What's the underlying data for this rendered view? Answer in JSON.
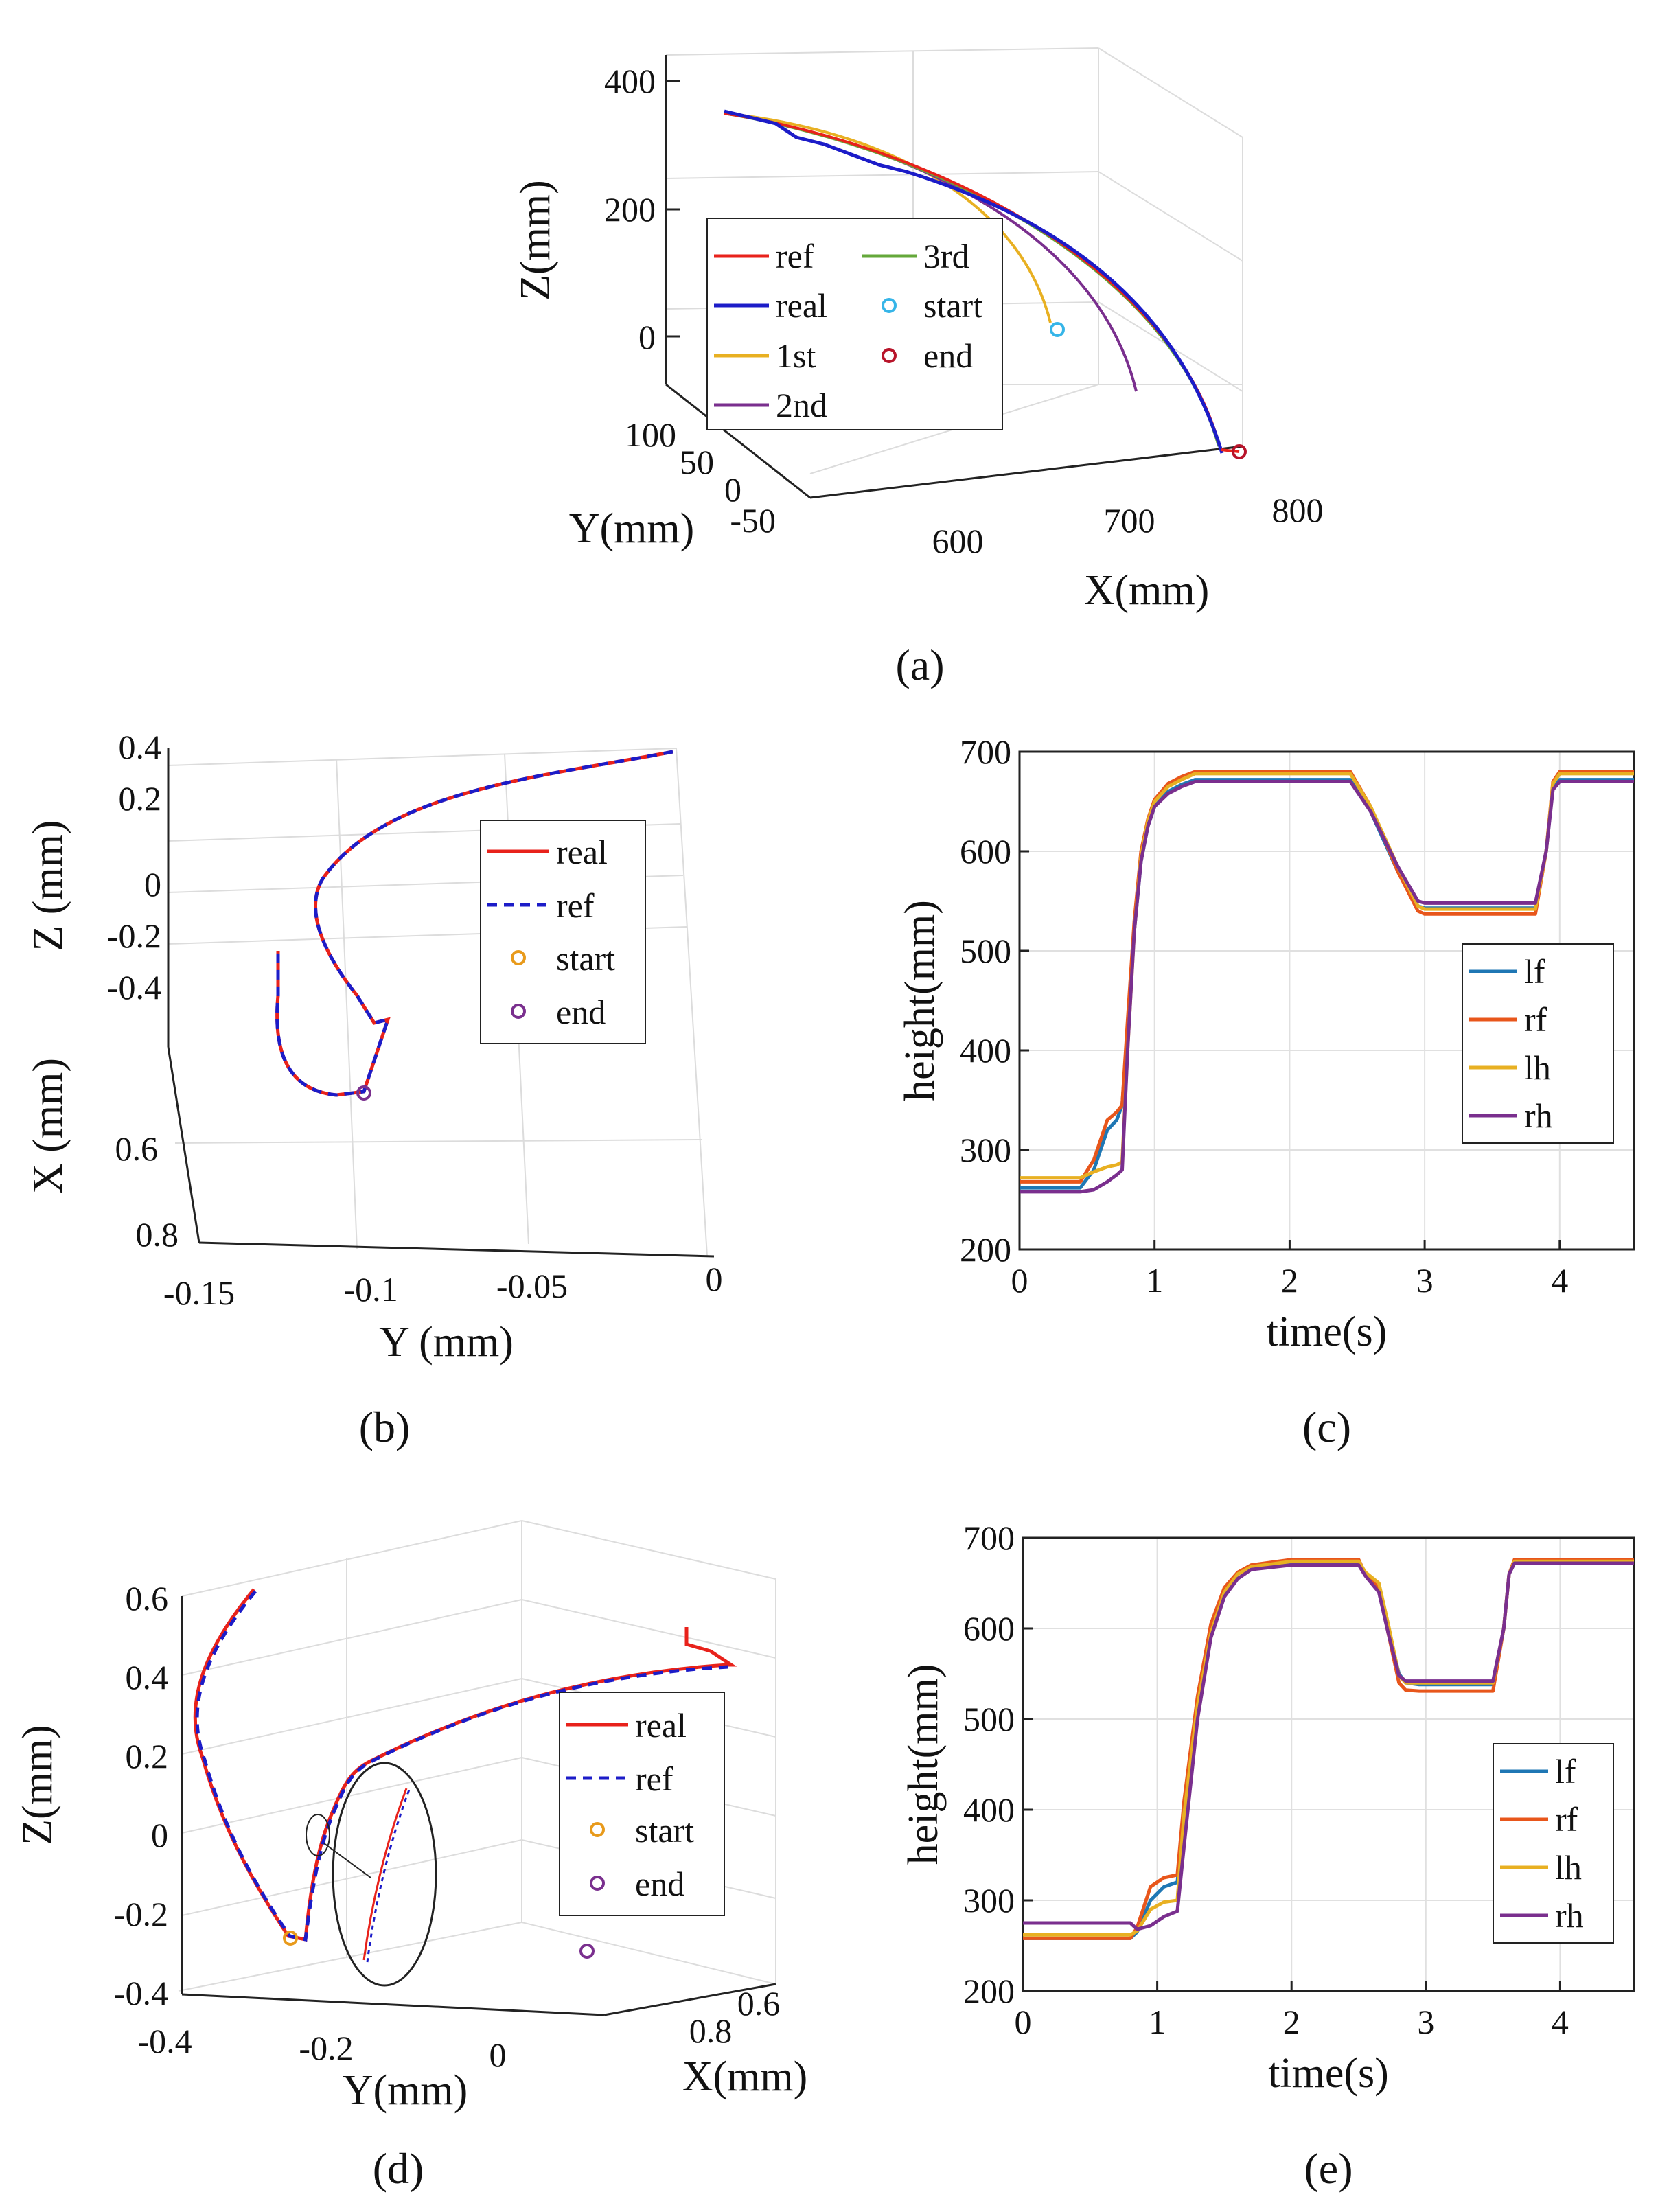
{
  "panels": {
    "a": {
      "caption": "(a)",
      "zlabel": "Z(mm)",
      "ylabel": "Y(mm)",
      "xlabel": "X(mm)",
      "zticks": [
        "400",
        "200",
        "0"
      ],
      "yticks": [
        "100",
        "50",
        "0",
        "-50"
      ],
      "xticks": [
        "600",
        "700",
        "800"
      ],
      "legend": [
        {
          "label": "ref",
          "color": "#e8221b",
          "kind": "line"
        },
        {
          "label": "real",
          "color": "#1c1cc8",
          "kind": "line"
        },
        {
          "label": "1st",
          "color": "#e8b022",
          "kind": "line"
        },
        {
          "label": "2nd",
          "color": "#7a2f8e",
          "kind": "line"
        },
        {
          "label": "3rd",
          "color": "#64a83a",
          "kind": "line"
        },
        {
          "label": "start",
          "color": "#36b5e8",
          "kind": "marker"
        },
        {
          "label": "end",
          "color": "#b8142a",
          "kind": "marker"
        }
      ]
    },
    "b": {
      "caption": "(b)",
      "zlabel": "Z (mm)",
      "xlabel": "X (mm)",
      "ylabel": "Y (mm)",
      "zticks": [
        "0.4",
        "0.2",
        "0",
        "-0.2",
        "-0.4"
      ],
      "xticks": [
        "0.6",
        "0.8"
      ],
      "yticks": [
        "-0.15",
        "-0.1",
        "-0.05",
        "0"
      ],
      "legend": [
        {
          "label": "real",
          "color": "#e8221b",
          "kind": "line"
        },
        {
          "label": "ref",
          "color": "#1c1cc8",
          "kind": "dash"
        },
        {
          "label": "start",
          "color": "#e89a1b",
          "kind": "marker"
        },
        {
          "label": "end",
          "color": "#7a2f8e",
          "kind": "marker"
        }
      ]
    },
    "d": {
      "caption": "(d)",
      "zlabel": "Z(mm)",
      "ylabel": "Y(mm)",
      "xlabel": "X(mm)",
      "zticks": [
        "0.6",
        "0.4",
        "0.2",
        "0",
        "-0.2",
        "-0.4"
      ],
      "yticks": [
        "-0.4",
        "-0.2",
        "0"
      ],
      "xticks": [
        "0.8",
        "0.6"
      ],
      "legend": [
        {
          "label": "real",
          "color": "#e8221b",
          "kind": "line"
        },
        {
          "label": "ref",
          "color": "#1c1cc8",
          "kind": "dash"
        },
        {
          "label": "start",
          "color": "#e89a1b",
          "kind": "marker"
        },
        {
          "label": "end",
          "color": "#7a2f8e",
          "kind": "marker"
        }
      ]
    }
  },
  "chart_data": [
    {
      "id": "c",
      "type": "line",
      "caption": "(c)",
      "xlabel": "time(s)",
      "ylabel": "height(mm)",
      "xlim": [
        0,
        4.55
      ],
      "ylim": [
        200,
        700
      ],
      "xticks": [
        0,
        1,
        2,
        3,
        4
      ],
      "yticks": [
        200,
        300,
        400,
        500,
        600,
        700
      ],
      "grid": true,
      "legend_position": "right",
      "series": [
        {
          "name": "lf",
          "color": "#1f77b4",
          "x": [
            0,
            0.45,
            0.55,
            0.65,
            0.72,
            0.76,
            0.8,
            0.85,
            0.9,
            0.95,
            1.0,
            1.1,
            1.2,
            1.3,
            1.5,
            2.0,
            2.45,
            2.6,
            2.8,
            2.95,
            3.0,
            3.2,
            3.5,
            3.82,
            3.9,
            3.95,
            4.0,
            4.55
          ],
          "y": [
            262,
            262,
            280,
            320,
            330,
            345,
            420,
            520,
            590,
            625,
            645,
            660,
            667,
            672,
            672,
            672,
            672,
            640,
            580,
            545,
            543,
            543,
            543,
            543,
            600,
            665,
            672,
            672
          ]
        },
        {
          "name": "rf",
          "color": "#e8561b",
          "x": [
            0,
            0.45,
            0.55,
            0.65,
            0.72,
            0.76,
            0.8,
            0.85,
            0.9,
            0.95,
            1.0,
            1.1,
            1.2,
            1.3,
            1.5,
            2.0,
            2.45,
            2.6,
            2.8,
            2.95,
            3.0,
            3.2,
            3.5,
            3.82,
            3.9,
            3.95,
            4.0,
            4.55
          ],
          "y": [
            268,
            268,
            290,
            330,
            338,
            345,
            430,
            530,
            600,
            632,
            652,
            668,
            675,
            680,
            680,
            680,
            680,
            645,
            580,
            540,
            537,
            537,
            537,
            537,
            600,
            670,
            680,
            680
          ]
        },
        {
          "name": "lh",
          "color": "#e8b022",
          "x": [
            0,
            0.45,
            0.55,
            0.65,
            0.72,
            0.76,
            0.8,
            0.85,
            0.9,
            0.95,
            1.0,
            1.1,
            1.2,
            1.3,
            1.5,
            2.0,
            2.45,
            2.6,
            2.8,
            2.95,
            3.0,
            3.2,
            3.5,
            3.82,
            3.9,
            3.95,
            4.0,
            4.55
          ],
          "y": [
            272,
            272,
            278,
            283,
            285,
            288,
            400,
            520,
            595,
            630,
            650,
            665,
            672,
            678,
            678,
            678,
            678,
            645,
            585,
            545,
            542,
            542,
            542,
            542,
            600,
            668,
            678,
            678
          ]
        },
        {
          "name": "rh",
          "color": "#7a2f8e",
          "x": [
            0,
            0.45,
            0.55,
            0.65,
            0.72,
            0.76,
            0.8,
            0.85,
            0.9,
            0.95,
            1.0,
            1.1,
            1.2,
            1.3,
            1.5,
            2.0,
            2.45,
            2.6,
            2.8,
            2.95,
            3.0,
            3.2,
            3.5,
            3.82,
            3.9,
            3.95,
            4.0,
            4.55
          ],
          "y": [
            258,
            258,
            260,
            268,
            275,
            280,
            400,
            520,
            590,
            625,
            645,
            658,
            665,
            670,
            670,
            670,
            670,
            640,
            585,
            550,
            548,
            548,
            548,
            548,
            600,
            662,
            670,
            670
          ]
        }
      ]
    },
    {
      "id": "e",
      "type": "line",
      "caption": "(e)",
      "xlabel": "time(s)",
      "ylabel": "height(mm)",
      "xlim": [
        0,
        4.55
      ],
      "ylim": [
        200,
        700
      ],
      "xticks": [
        0,
        1,
        2,
        3,
        4
      ],
      "yticks": [
        200,
        300,
        400,
        500,
        600,
        700
      ],
      "grid": true,
      "legend_position": "bottom-right",
      "series": [
        {
          "name": "lf",
          "color": "#1f77b4",
          "x": [
            0,
            0.8,
            0.85,
            0.95,
            1.05,
            1.15,
            1.2,
            1.3,
            1.4,
            1.5,
            1.6,
            1.7,
            2.0,
            2.5,
            2.55,
            2.65,
            2.72,
            2.8,
            2.85,
            2.95,
            3.0,
            3.5,
            3.58,
            3.62,
            3.66,
            3.7,
            4.55
          ],
          "y": [
            258,
            258,
            265,
            300,
            315,
            320,
            400,
            520,
            600,
            640,
            660,
            668,
            673,
            673,
            660,
            645,
            600,
            550,
            540,
            538,
            538,
            538,
            600,
            660,
            673,
            673,
            673
          ]
        },
        {
          "name": "rf",
          "color": "#e8561b",
          "x": [
            0,
            0.8,
            0.85,
            0.95,
            1.05,
            1.15,
            1.2,
            1.3,
            1.4,
            1.5,
            1.6,
            1.7,
            2.0,
            2.5,
            2.55,
            2.65,
            2.72,
            2.8,
            2.85,
            2.95,
            3.0,
            3.5,
            3.58,
            3.62,
            3.66,
            3.7,
            4.55
          ],
          "y": [
            258,
            258,
            270,
            315,
            325,
            328,
            410,
            525,
            605,
            645,
            662,
            670,
            676,
            676,
            660,
            645,
            595,
            540,
            532,
            531,
            531,
            531,
            600,
            660,
            676,
            676,
            676
          ]
        },
        {
          "name": "lh",
          "color": "#e8b022",
          "x": [
            0,
            0.8,
            0.85,
            0.95,
            1.05,
            1.15,
            1.2,
            1.3,
            1.4,
            1.5,
            1.6,
            1.7,
            2.0,
            2.5,
            2.55,
            2.65,
            2.72,
            2.8,
            2.85,
            2.95,
            3.0,
            3.5,
            3.58,
            3.62,
            3.66,
            3.7,
            4.55
          ],
          "y": [
            262,
            262,
            266,
            290,
            298,
            300,
            395,
            515,
            595,
            640,
            660,
            668,
            674,
            674,
            662,
            650,
            605,
            548,
            540,
            540,
            540,
            540,
            600,
            660,
            674,
            674,
            674
          ]
        },
        {
          "name": "rh",
          "color": "#7a2f8e",
          "x": [
            0,
            0.8,
            0.85,
            0.95,
            1.05,
            1.15,
            1.2,
            1.3,
            1.4,
            1.5,
            1.6,
            1.7,
            2.0,
            2.5,
            2.55,
            2.65,
            2.72,
            2.8,
            2.85,
            2.95,
            3.0,
            3.5,
            3.58,
            3.62,
            3.66,
            3.7,
            4.55
          ],
          "y": [
            275,
            275,
            268,
            272,
            282,
            288,
            360,
            500,
            590,
            635,
            655,
            665,
            670,
            670,
            658,
            640,
            595,
            548,
            542,
            542,
            542,
            542,
            600,
            660,
            672,
            672,
            672
          ]
        }
      ]
    }
  ]
}
